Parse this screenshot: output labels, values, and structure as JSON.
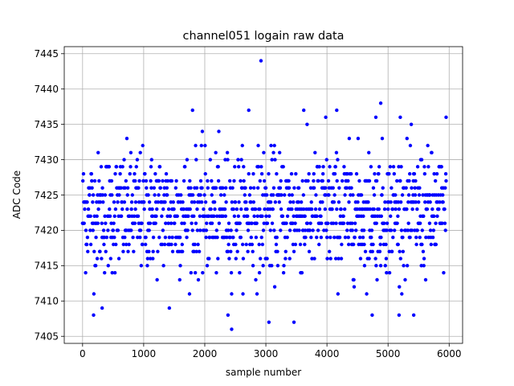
{
  "chart_data": {
    "type": "scatter",
    "title": "channel051 logain raw data",
    "xlabel": "sample number",
    "ylabel": "ADC Code",
    "xlim": [
      -300,
      6220
    ],
    "ylim": [
      7404,
      7446
    ],
    "x_ticks": [
      0,
      1000,
      2000,
      3000,
      4000,
      5000,
      6000
    ],
    "y_ticks": [
      7405,
      7410,
      7415,
      7420,
      7425,
      7430,
      7435,
      7440,
      7445
    ],
    "grid": true,
    "marker_color": "#0000ff",
    "series": [
      {
        "x_range": [
          0,
          5950
        ],
        "typical_range": [
          7413,
          7432
        ],
        "center": 7422.5,
        "outliers": [
          {
            "x": 2920,
            "y": 7444
          },
          {
            "x": 4880,
            "y": 7438
          },
          {
            "x": 1800,
            "y": 7437
          },
          {
            "x": 2720,
            "y": 7437
          },
          {
            "x": 3620,
            "y": 7437
          },
          {
            "x": 4160,
            "y": 7437
          },
          {
            "x": 2440,
            "y": 7406
          },
          {
            "x": 3050,
            "y": 7407
          },
          {
            "x": 3460,
            "y": 7407
          },
          {
            "x": 2380,
            "y": 7408
          },
          {
            "x": 180,
            "y": 7408
          },
          {
            "x": 4740,
            "y": 7408
          },
          {
            "x": 5180,
            "y": 7408
          },
          {
            "x": 5420,
            "y": 7408
          },
          {
            "x": 5950,
            "y": 7436
          },
          {
            "x": 3980,
            "y": 7436
          },
          {
            "x": 4800,
            "y": 7436
          },
          {
            "x": 5200,
            "y": 7436
          },
          {
            "x": 320,
            "y": 7409
          },
          {
            "x": 1420,
            "y": 7409
          }
        ]
      }
    ]
  }
}
